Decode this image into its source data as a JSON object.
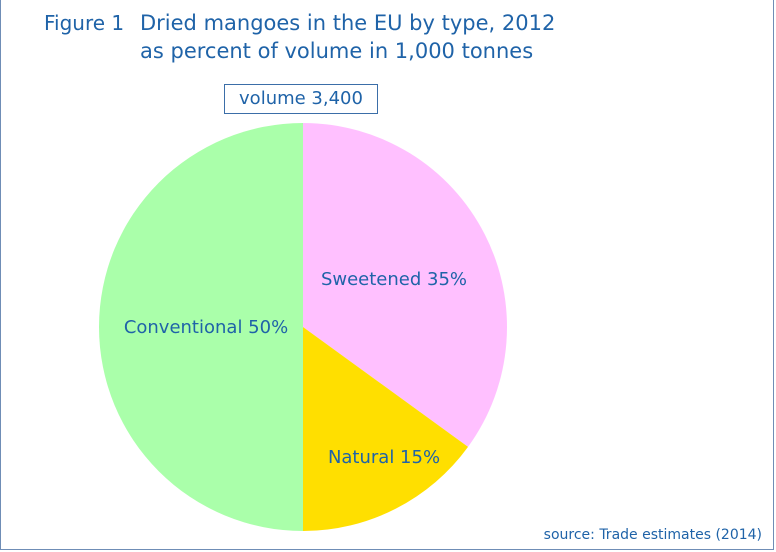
{
  "header": {
    "figure_label": "Figure 1",
    "title": "Dried mangoes in the EU by type, 2012",
    "subtitle": "as percent of volume in 1,000 tonnes"
  },
  "volume_label": "volume 3,400",
  "source": "source: Trade estimates (2014)",
  "chart_data": {
    "type": "pie",
    "title": "Dried mangoes in the EU by type, 2012",
    "subtitle": "as percent of volume in 1,000 tonnes",
    "total_label": "volume 3,400",
    "total": 3400,
    "slices": [
      {
        "label": "Sweetened 35%",
        "name": "Sweetened",
        "value": 35,
        "color": "#ffc0ff"
      },
      {
        "label": "Natural 15%",
        "name": "Natural",
        "value": 15,
        "color": "#ffdf00"
      },
      {
        "label": "Conventional 50%",
        "name": "Conventional",
        "value": 50,
        "color": "#aaffaa"
      }
    ],
    "start": "12 o'clock",
    "direction": "clockwise",
    "label_color": "#1f63a8"
  }
}
